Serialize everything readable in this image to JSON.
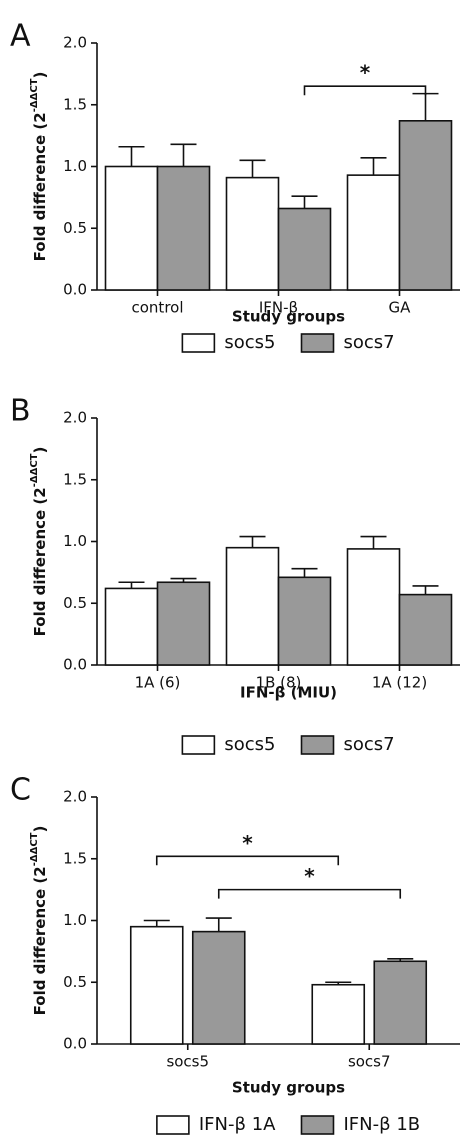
{
  "chart_data": [
    {
      "type": "bar",
      "label": "A",
      "ylabel": [
        "Fold difference (2",
        "-ΔΔCT",
        ")"
      ],
      "xlabel": "Study groups",
      "categories": [
        "control",
        "IFN-β",
        "GA"
      ],
      "series": [
        {
          "name": "socs5",
          "color": "#ffffff",
          "values": [
            1.0,
            0.91,
            0.93
          ],
          "errors": [
            0.16,
            0.14,
            0.14
          ]
        },
        {
          "name": "socs7",
          "color": "#999999",
          "values": [
            1.0,
            0.66,
            1.37
          ],
          "errors": [
            0.18,
            0.1,
            0.22
          ]
        }
      ],
      "ylim": [
        0,
        2
      ],
      "yticks": [
        {
          "value": 0,
          "label": "0.0"
        },
        0.5,
        {
          "value": 1,
          "label": "1.0"
        },
        1.5,
        {
          "value": 2,
          "label": "2.0"
        }
      ],
      "annotations": [
        {
          "text": "*",
          "y": 1.65,
          "from": [
            1,
            1
          ],
          "to": [
            2,
            1
          ]
        }
      ]
    },
    {
      "type": "bar",
      "label": "B",
      "ylabel": [
        "Fold difference (2",
        "-ΔΔCT",
        ")"
      ],
      "xlabel": "IFN-β  (MIU)",
      "categories": [
        "1A (6)",
        "1B (8)",
        "1A (12)"
      ],
      "series": [
        {
          "name": "socs5",
          "color": "#ffffff",
          "values": [
            0.62,
            0.95,
            0.94
          ],
          "errors": [
            0.05,
            0.09,
            0.1
          ]
        },
        {
          "name": "socs7",
          "color": "#999999",
          "values": [
            0.67,
            0.71,
            0.57
          ],
          "errors": [
            0.03,
            0.07,
            0.07
          ]
        }
      ],
      "ylim": [
        0,
        2
      ],
      "yticks": [
        {
          "value": 0,
          "label": "0.0"
        },
        0.5,
        {
          "value": 1,
          "label": "1.0"
        },
        1.5,
        {
          "value": 2,
          "label": "2.0"
        }
      ],
      "annotations": []
    },
    {
      "type": "bar",
      "label": "C",
      "ylabel": [
        "Fold difference (2",
        "-ΔΔCT",
        ")"
      ],
      "xlabel": "Study groups",
      "categories": [
        "socs5",
        "socs7"
      ],
      "series": [
        {
          "name": "IFN-β 1A",
          "color": "#ffffff",
          "values": [
            0.95,
            0.48
          ],
          "errors": [
            0.05,
            0.02
          ]
        },
        {
          "name": "IFN-β 1B",
          "color": "#999999",
          "values": [
            0.91,
            0.67
          ],
          "errors": [
            0.11,
            0.02
          ]
        }
      ],
      "ylim": [
        0,
        2
      ],
      "yticks": [
        {
          "value": 0,
          "label": "0.0"
        },
        0.5,
        {
          "value": 1,
          "label": "1.0"
        },
        1.5,
        {
          "value": 2,
          "label": "2.0"
        }
      ],
      "annotations": [
        {
          "text": "*",
          "y": 1.52,
          "from": [
            0,
            0
          ],
          "to": [
            1,
            0
          ]
        },
        {
          "text": "*",
          "y": 1.25,
          "from": [
            0,
            1
          ],
          "to": [
            1,
            1
          ]
        }
      ]
    }
  ]
}
